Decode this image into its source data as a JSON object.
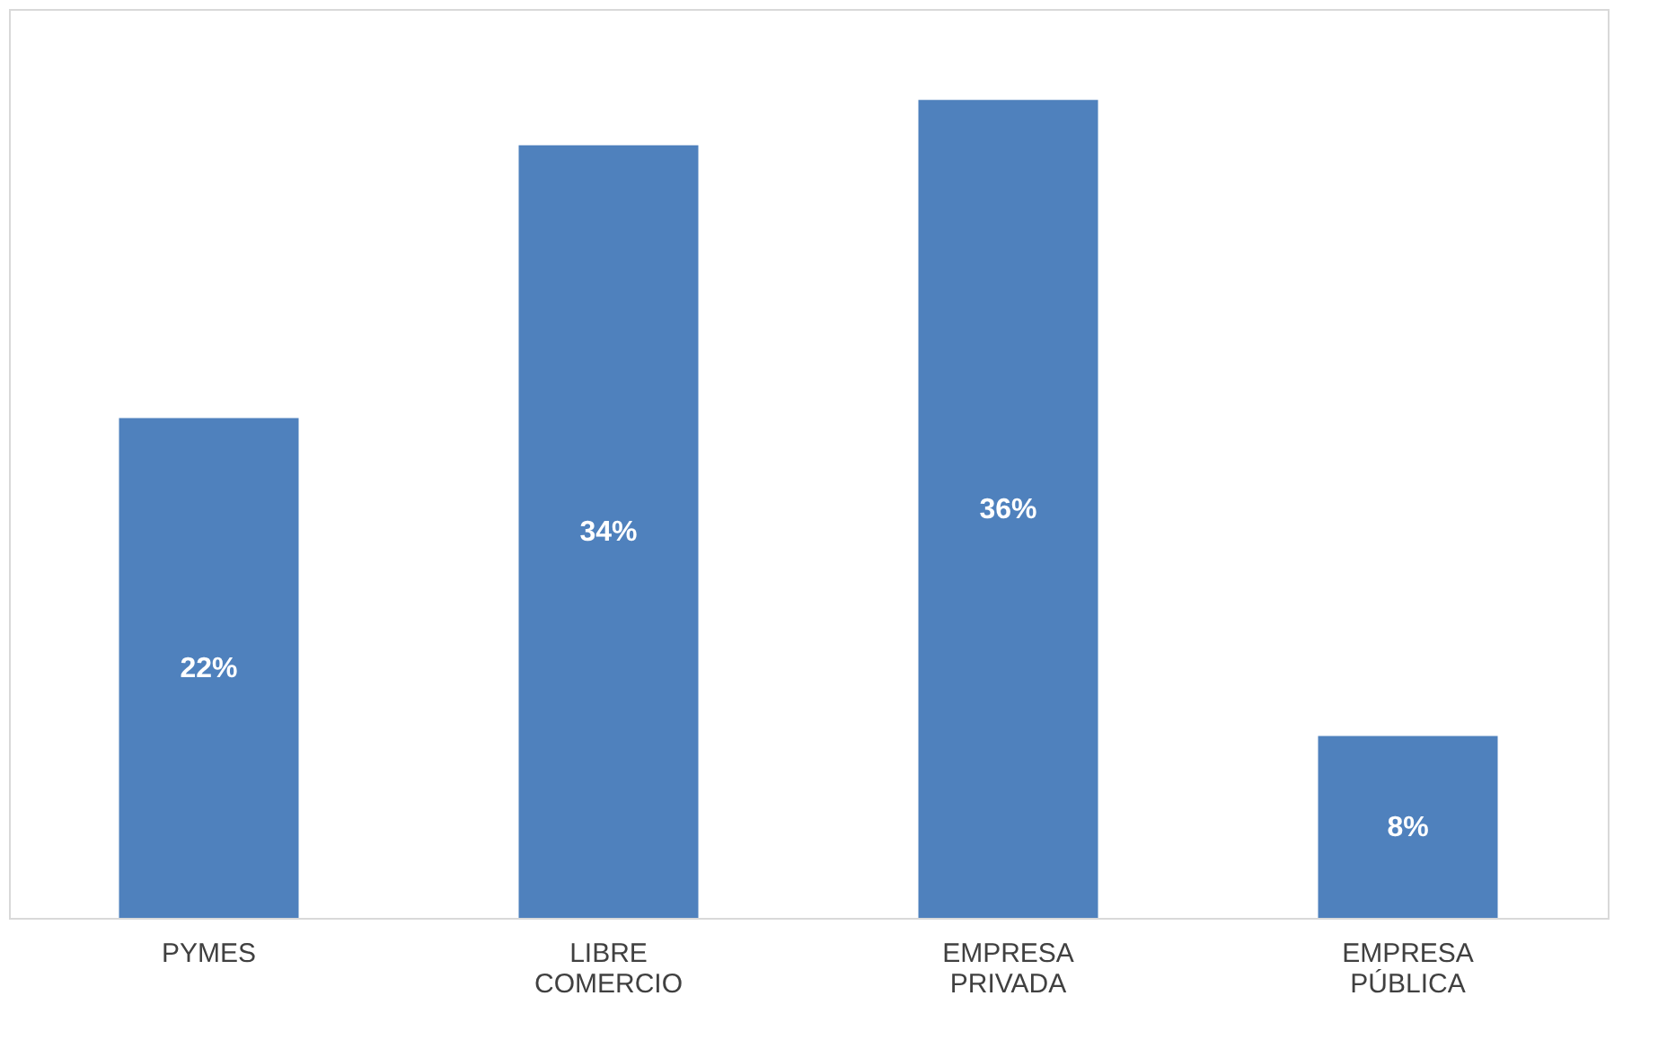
{
  "chart_data": {
    "type": "bar",
    "categories": [
      "PYMES",
      "LIBRE COMERCIO",
      "EMPRESA PRIVADA",
      "EMPRESA PÚBLICA"
    ],
    "values": [
      22,
      34,
      36,
      8
    ],
    "value_labels": [
      "22%",
      "34%",
      "36%",
      "8%"
    ],
    "color": "#4f81bd",
    "tick_labels": "x"
  }
}
